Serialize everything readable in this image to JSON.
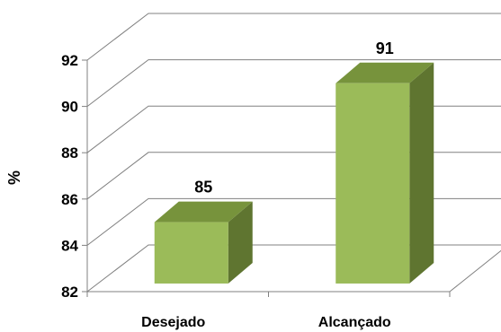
{
  "chart_data": {
    "type": "bar",
    "style": "3d-column",
    "categories": [
      "Desejado",
      "Alcançado"
    ],
    "values": [
      85,
      91
    ],
    "data_labels": [
      "85",
      "91"
    ],
    "title": "",
    "xlabel": "",
    "ylabel": "%",
    "ylim": [
      82,
      92
    ],
    "yticks": [
      "82",
      "84",
      "86",
      "88",
      "90",
      "92"
    ],
    "grid": true,
    "legend": "none",
    "colors": {
      "bar_front": "#9BBB59",
      "bar_top": "#77933C",
      "bar_side": "#5F7530",
      "gridline": "#808080",
      "axis": "#808080"
    }
  }
}
